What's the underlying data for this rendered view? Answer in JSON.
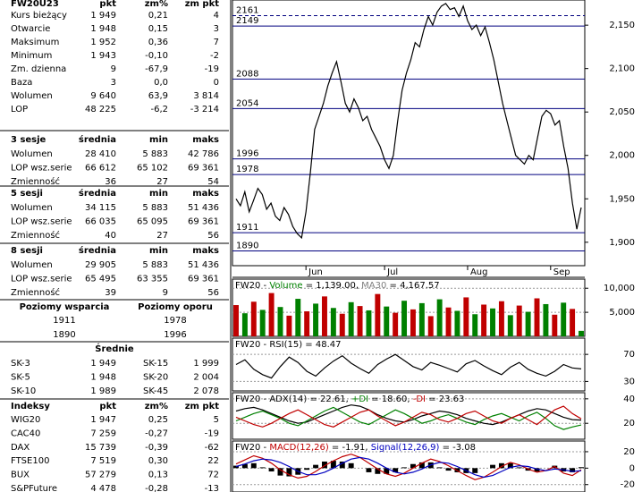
{
  "summary": {
    "title": "FW20U23",
    "headers": [
      "pkt",
      "zm%",
      "zm pkt"
    ],
    "rows": [
      [
        "Kurs bieżący",
        "1 949",
        "0,21",
        "4"
      ],
      [
        "Otwarcie",
        "1 948",
        "0,15",
        "3"
      ],
      [
        "Maksimum",
        "1 952",
        "0,36",
        "7"
      ],
      [
        "Minimum",
        "1 943",
        "-0,10",
        "-2"
      ],
      [
        "Zm. dzienna",
        "9",
        "-67,9",
        "-19"
      ],
      [
        "Baza",
        "3",
        "0,0",
        "0"
      ],
      [
        "Wolumen",
        "9 640",
        "63,9",
        "3 814"
      ],
      [
        "LOP",
        "48 225",
        "-6,2",
        "-3 214"
      ]
    ]
  },
  "sessions": [
    {
      "title": "3 sesje",
      "headers": [
        "średnia",
        "min",
        "maks"
      ],
      "rows": [
        [
          "Wolumen",
          "28 410",
          "5 883",
          "42 786"
        ],
        [
          "LOP wsz.serie",
          "66 612",
          "65 102",
          "69 361"
        ],
        [
          "Zmienność",
          "36",
          "27",
          "54"
        ]
      ]
    },
    {
      "title": "5 sesji",
      "headers": [
        "średnia",
        "min",
        "maks"
      ],
      "rows": [
        [
          "Wolumen",
          "34 115",
          "5 883",
          "51 436"
        ],
        [
          "LOP wsz.serie",
          "66 035",
          "65 095",
          "69 361"
        ],
        [
          "Zmienność",
          "40",
          "27",
          "56"
        ]
      ]
    },
    {
      "title": "8 sesji",
      "headers": [
        "średnia",
        "min",
        "maks"
      ],
      "rows": [
        [
          "Wolumen",
          "29 905",
          "5 883",
          "51 436"
        ],
        [
          "LOP wsz.serie",
          "65 495",
          "63 355",
          "69 361"
        ],
        [
          "Zmienność",
          "39",
          "9",
          "56"
        ]
      ]
    }
  ],
  "levels": {
    "headers": [
      "Poziomy wsparcia",
      "Poziomy oporu"
    ],
    "rows": [
      [
        "1911",
        "1978"
      ],
      [
        "1890",
        "1996"
      ]
    ]
  },
  "averages": {
    "title": "Średnie",
    "rows": [
      [
        "SK-3",
        "1 949",
        "SK-15",
        "1 999"
      ],
      [
        "SK-5",
        "1 948",
        "SK-20",
        "2 004"
      ],
      [
        "SK-10",
        "1 989",
        "SK-45",
        "2 078"
      ]
    ]
  },
  "indices": {
    "headers": [
      "Indeksy",
      "pkt",
      "zm%",
      "zm pkt"
    ],
    "rows": [
      [
        "WIG20",
        "1 947",
        "0,25",
        "5"
      ],
      [
        "CAC40",
        "7 259",
        "-0,27",
        "-19"
      ],
      [
        "DAX",
        "15 739",
        "-0,39",
        "-62"
      ],
      [
        "FTSE100",
        "7 519",
        "0,30",
        "22"
      ],
      [
        "BUX",
        "57 279",
        "0,13",
        "72"
      ],
      [
        "S&PFuture",
        "4 478",
        "-0,28",
        "-13"
      ]
    ]
  },
  "chart_data": [
    {
      "type": "line",
      "xlim": [
        0,
        79
      ],
      "ylim": [
        1873,
        2179
      ],
      "yticks": [
        {
          "value": 1900,
          "label": "1,900"
        },
        {
          "value": 1950,
          "label": "1,950"
        },
        {
          "value": 2000,
          "label": "2,000"
        },
        {
          "value": 2050,
          "label": "2,050"
        },
        {
          "value": 2100,
          "label": "2,100"
        },
        {
          "value": 2150,
          "label": "2,150"
        }
      ],
      "xticks": [
        {
          "value": 16,
          "label": "Jun"
        },
        {
          "value": 34,
          "label": "Jul"
        },
        {
          "value": 53,
          "label": "Aug"
        },
        {
          "value": 72,
          "label": "Sep"
        }
      ],
      "levels": [
        2161,
        2149,
        2088,
        2054,
        1996,
        1978,
        1911,
        1890
      ],
      "level_color": "#00007f",
      "grid": false,
      "series": [
        {
          "color": "#000000",
          "values": [
            1950,
            1942,
            1958,
            1935,
            1948,
            1962,
            1955,
            1938,
            1945,
            1930,
            1925,
            1940,
            1932,
            1918,
            1910,
            1905,
            1935,
            1980,
            2030,
            2045,
            2060,
            2080,
            2095,
            2108,
            2085,
            2060,
            2050,
            2065,
            2055,
            2040,
            2045,
            2030,
            2020,
            2010,
            1995,
            1985,
            2000,
            2040,
            2075,
            2095,
            2110,
            2130,
            2125,
            2145,
            2160,
            2150,
            2165,
            2172,
            2175,
            2168,
            2170,
            2160,
            2172,
            2155,
            2145,
            2150,
            2138,
            2148,
            2130,
            2110,
            2085,
            2060,
            2040,
            2020,
            2000,
            1995,
            1990,
            2000,
            1995,
            2020,
            2045,
            2052,
            2048,
            2035,
            2040,
            2010,
            1985,
            1945,
            1915,
            1940
          ]
        }
      ]
    },
    {
      "type": "bar",
      "title": [
        {
          "text": "FW20 - ",
          "color": "#000000"
        },
        {
          "text": "Volume",
          "color": "#008000"
        },
        {
          "text": " = 1,139.00, ",
          "color": "#000000"
        },
        {
          "text": "MA30",
          "color": "#808080"
        },
        {
          "text": " = 4,167.57",
          "color": "#000000"
        }
      ],
      "xlim": [
        0,
        39
      ],
      "ylim": [
        0,
        11900
      ],
      "yticks": [
        {
          "value": 5000,
          "label": "5,000"
        },
        {
          "value": 10000,
          "label": "10,000"
        }
      ],
      "grid": true,
      "series": [
        {
          "color": "#c00000",
          "values": [
            6500,
            null,
            7200,
            null,
            9000,
            null,
            4300,
            null,
            5200,
            null,
            8300,
            null,
            4700,
            null,
            6300,
            null,
            8800,
            null,
            4900,
            null,
            5600,
            null,
            4200,
            null,
            6000,
            null,
            8100,
            null,
            6600,
            null,
            7300,
            null,
            6400,
            null,
            7900,
            null,
            4500,
            null,
            5700,
            null
          ]
        },
        {
          "color": "#008000",
          "values": [
            null,
            4800,
            null,
            5500,
            null,
            6100,
            null,
            7800,
            null,
            6800,
            null,
            5900,
            null,
            7100,
            null,
            5400,
            null,
            6200,
            null,
            7400,
            null,
            6900,
            null,
            7700,
            null,
            5300,
            null,
            4600,
            null,
            5800,
            null,
            4400,
            null,
            5100,
            null,
            6700,
            null,
            7000,
            null,
            1139
          ]
        }
      ]
    },
    {
      "type": "line",
      "title": [
        {
          "text": "FW20 - ",
          "color": "#000000"
        },
        {
          "text": "RSI(15)",
          "color": "#000000"
        },
        {
          "text": " = 48.47",
          "color": "#000000"
        }
      ],
      "xlim": [
        0,
        39
      ],
      "ylim": [
        16,
        94
      ],
      "yticks": [
        30,
        70
      ],
      "grid": true,
      "series": [
        {
          "color": "#000000",
          "values": [
            55,
            62,
            48,
            40,
            35,
            52,
            66,
            58,
            45,
            38,
            50,
            60,
            68,
            57,
            49,
            42,
            55,
            63,
            70,
            61,
            52,
            47,
            58,
            54,
            49,
            44,
            56,
            61,
            53,
            46,
            40,
            51,
            58,
            48,
            42,
            38,
            45,
            55,
            50,
            48.47
          ]
        }
      ]
    },
    {
      "type": "line",
      "title": [
        {
          "text": "FW20 - ",
          "color": "#000000"
        },
        {
          "text": "ADX(14) = 22.61, ",
          "color": "#000000"
        },
        {
          "text": "+DI",
          "color": "#008000"
        },
        {
          "text": " = 18.60, ",
          "color": "#000000"
        },
        {
          "text": "-DI",
          "color": "#c00000"
        },
        {
          "text": " = 23.63",
          "color": "#000000"
        }
      ],
      "xlim": [
        0,
        39
      ],
      "ylim": [
        7,
        45
      ],
      "yticks": [
        20,
        40
      ],
      "grid": true,
      "series": [
        {
          "color": "#000000",
          "values": [
            30,
            32,
            33,
            31,
            28,
            25,
            22,
            20,
            21,
            24,
            27,
            30,
            33,
            35,
            34,
            31,
            27,
            24,
            22,
            21,
            23,
            26,
            28,
            30,
            29,
            27,
            24,
            22,
            20,
            19,
            21,
            24,
            27,
            30,
            32,
            31,
            28,
            25,
            23,
            22.61
          ]
        },
        {
          "color": "#008000",
          "values": [
            22,
            25,
            28,
            30,
            27,
            24,
            20,
            18,
            22,
            26,
            30,
            33,
            29,
            25,
            21,
            19,
            23,
            27,
            31,
            28,
            24,
            20,
            22,
            25,
            27,
            24,
            21,
            19,
            23,
            26,
            28,
            25,
            22,
            26,
            29,
            24,
            18,
            15,
            17,
            18.6
          ]
        },
        {
          "color": "#c00000",
          "values": [
            25,
            22,
            19,
            17,
            20,
            24,
            28,
            31,
            27,
            23,
            19,
            17,
            21,
            25,
            29,
            31,
            26,
            22,
            18,
            21,
            25,
            29,
            27,
            23,
            21,
            24,
            28,
            30,
            26,
            22,
            20,
            24,
            27,
            23,
            19,
            25,
            31,
            34,
            28,
            23.63
          ]
        }
      ]
    },
    {
      "type": "line",
      "title": [
        {
          "text": "FW20 - ",
          "color": "#000000"
        },
        {
          "text": "MACD(12,26)",
          "color": "#c00000"
        },
        {
          "text": " = -1.91, ",
          "color": "#000000"
        },
        {
          "text": "Signal(12,26,9)",
          "color": "#0000c0"
        },
        {
          "text": " = -3.08",
          "color": "#000000"
        }
      ],
      "xlim": [
        0,
        39
      ],
      "ylim": [
        -29,
        33
      ],
      "yticks": [
        -20,
        0,
        20
      ],
      "grid": true,
      "series": [
        {
          "color": "#000000",
          "type": "bar",
          "values": [
            3,
            5,
            6,
            1,
            -4,
            -9,
            -10,
            -8,
            -2,
            4,
            8,
            9,
            8,
            6,
            0,
            -5,
            -7,
            -7,
            -5,
            1,
            5,
            7,
            7,
            1,
            -3,
            -5,
            -6,
            -6,
            0,
            4,
            6,
            6,
            1,
            -3,
            -4,
            0,
            3,
            -4,
            -5,
            1.17
          ]
        },
        {
          "color": "#c00000",
          "values": [
            5,
            10,
            15,
            12,
            6,
            -2,
            -8,
            -12,
            -10,
            -4,
            3,
            9,
            14,
            17,
            13,
            6,
            -1,
            -7,
            -10,
            -6,
            0,
            6,
            11,
            8,
            3,
            -3,
            -9,
            -14,
            -11,
            -5,
            2,
            7,
            4,
            -1,
            -5,
            -3,
            2,
            -6,
            -9,
            -1.91
          ]
        },
        {
          "color": "#0000c0",
          "values": [
            2,
            5,
            9,
            11,
            10,
            7,
            2,
            -4,
            -8,
            -8,
            -5,
            0,
            6,
            11,
            13,
            11,
            6,
            0,
            -5,
            -7,
            -5,
            -1,
            4,
            7,
            6,
            2,
            -3,
            -8,
            -11,
            -9,
            -4,
            1,
            3,
            2,
            -1,
            -3,
            -1,
            -2,
            -4,
            -3.08
          ]
        }
      ]
    }
  ]
}
